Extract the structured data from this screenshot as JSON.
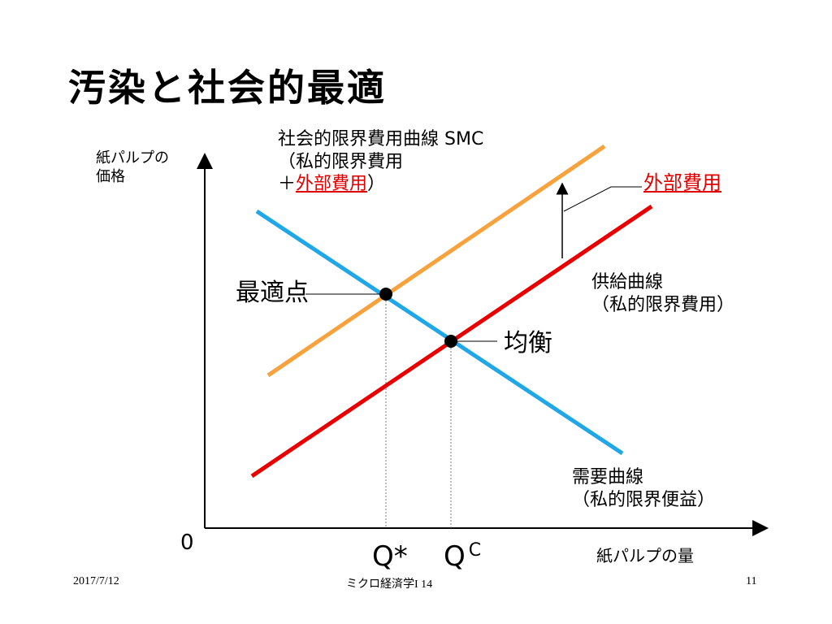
{
  "title": "汚染と社会的最適",
  "axes": {
    "y_label_line1": "紙パルプの",
    "y_label_line2": "価格",
    "x_label": "紙パルプの量",
    "origin": "0"
  },
  "labels": {
    "smc_line1": "社会的限界費用曲線 SMC",
    "smc_line2": "（私的限界費用",
    "smc_line3_prefix": "＋",
    "smc_line3_red": "外部費用",
    "smc_line3_suffix": "）",
    "external_cost": "外部費用",
    "supply_line1": "供給曲線",
    "supply_line2": "（私的限界費用）",
    "demand_line1": "需要曲線",
    "demand_line2": "（私的限界便益）",
    "optimal_point": "最適点",
    "equilibrium": "均衡",
    "q_star": "Q*",
    "q_c_main": "Q",
    "q_c_sup": "C"
  },
  "colors": {
    "demand": "#1fa7e8",
    "supply": "#e80000",
    "smc": "#f7a23c",
    "external_cost_text": "#e00000",
    "axis": "#000000"
  },
  "footer": {
    "date": "2017/7/12",
    "course": "ミクロ経済学I 14",
    "page": "11"
  }
}
